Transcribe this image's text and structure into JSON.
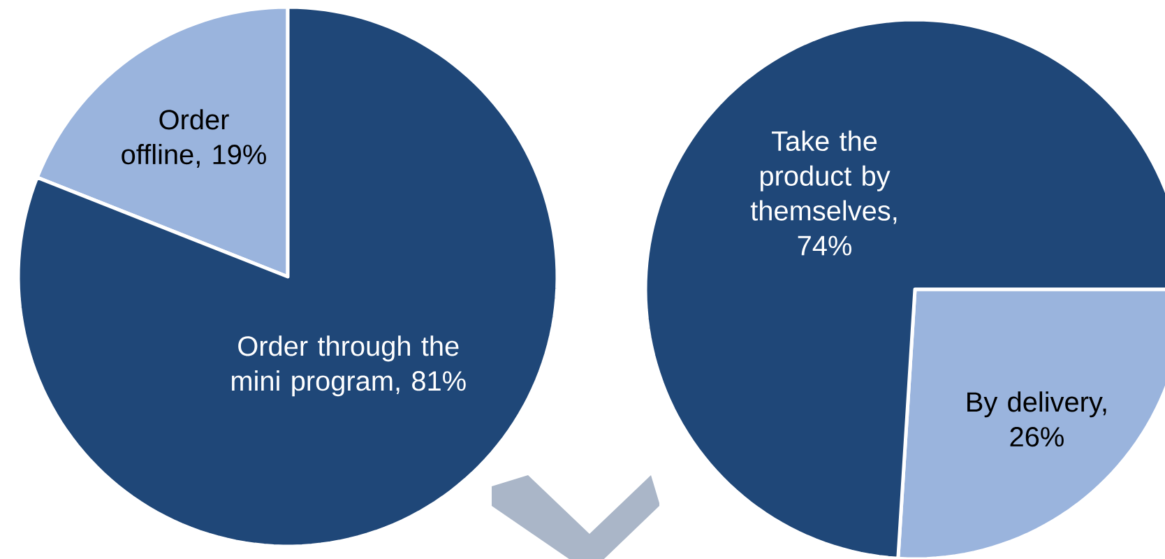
{
  "chart_data": [
    {
      "type": "pie",
      "categories": [
        "Order offline, 19%",
        "Order through the mini program, 81%"
      ],
      "values": [
        19,
        81
      ],
      "colors": [
        "#9ab4dd",
        "#1f4778"
      ]
    },
    {
      "type": "pie",
      "categories": [
        "By delivery, 26%",
        "Take the product by themselves, 74%"
      ],
      "values": [
        26,
        74
      ],
      "colors": [
        "#9ab4dd",
        "#1f4778"
      ]
    }
  ]
}
